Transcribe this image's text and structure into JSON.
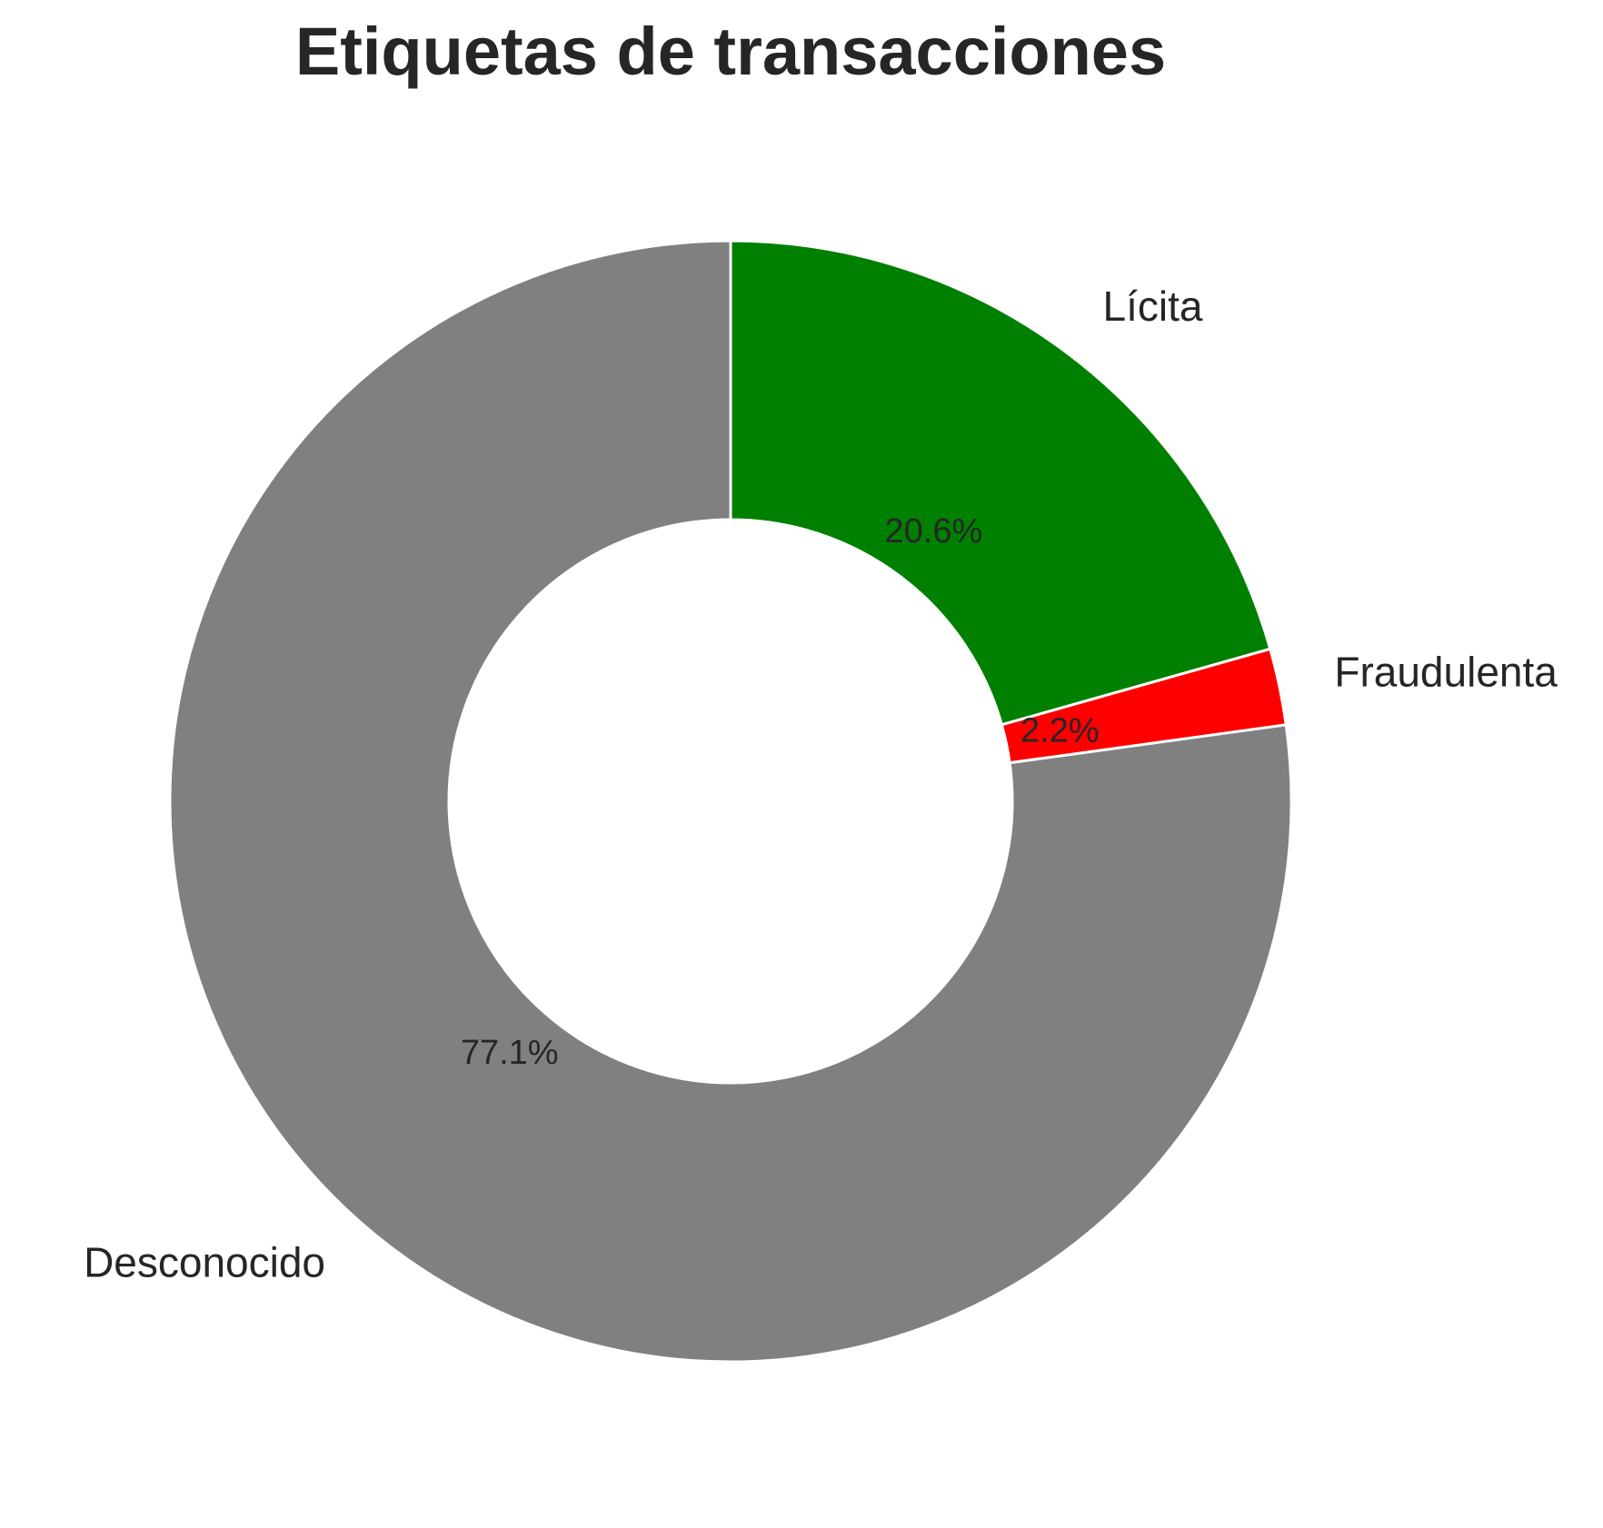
{
  "chart_data": {
    "type": "pie",
    "donut": true,
    "title": "Etiquetas de transacciones",
    "start": "top",
    "direction": "clockwise",
    "slices": [
      {
        "label": "Lícita",
        "value": 20.6,
        "pct_label": "20.6%",
        "color": "#008000"
      },
      {
        "label": "Fraudulenta",
        "value": 2.2,
        "pct_label": "2.2%",
        "color": "#ff0000"
      },
      {
        "label": "Desconocido",
        "value": 77.1,
        "pct_label": "77.1%",
        "color": "#808080"
      }
    ],
    "edge_color": "#ffffff"
  }
}
